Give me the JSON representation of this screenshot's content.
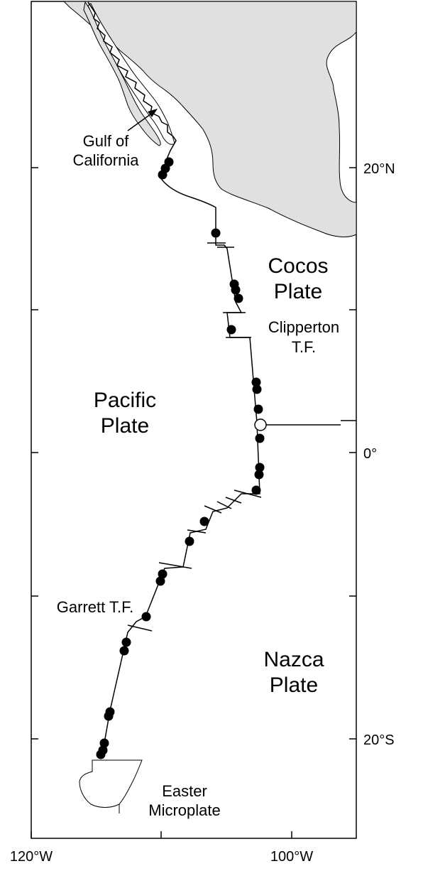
{
  "map": {
    "land_color": "#e0e0e0",
    "frame_color": "#000000",
    "labels": {
      "cocos_line1": "Cocos",
      "cocos_line2": "Plate",
      "pacific_line1": "Pacific",
      "pacific_line2": "Plate",
      "nazca_line1": "Nazca",
      "nazca_line2": "Plate",
      "gulf_line1": "Gulf of",
      "gulf_line2": "California",
      "clipperton_line1": "Clipperton",
      "clipperton_line2": "T.F.",
      "garrett": "Garrett T.F.",
      "easter_line1": "Easter",
      "easter_line2": "Microplate"
    },
    "lat_ticks": [
      "20°N",
      "0°",
      "20°S"
    ],
    "lon_ticks": [
      "120°W",
      "100°W"
    ]
  }
}
